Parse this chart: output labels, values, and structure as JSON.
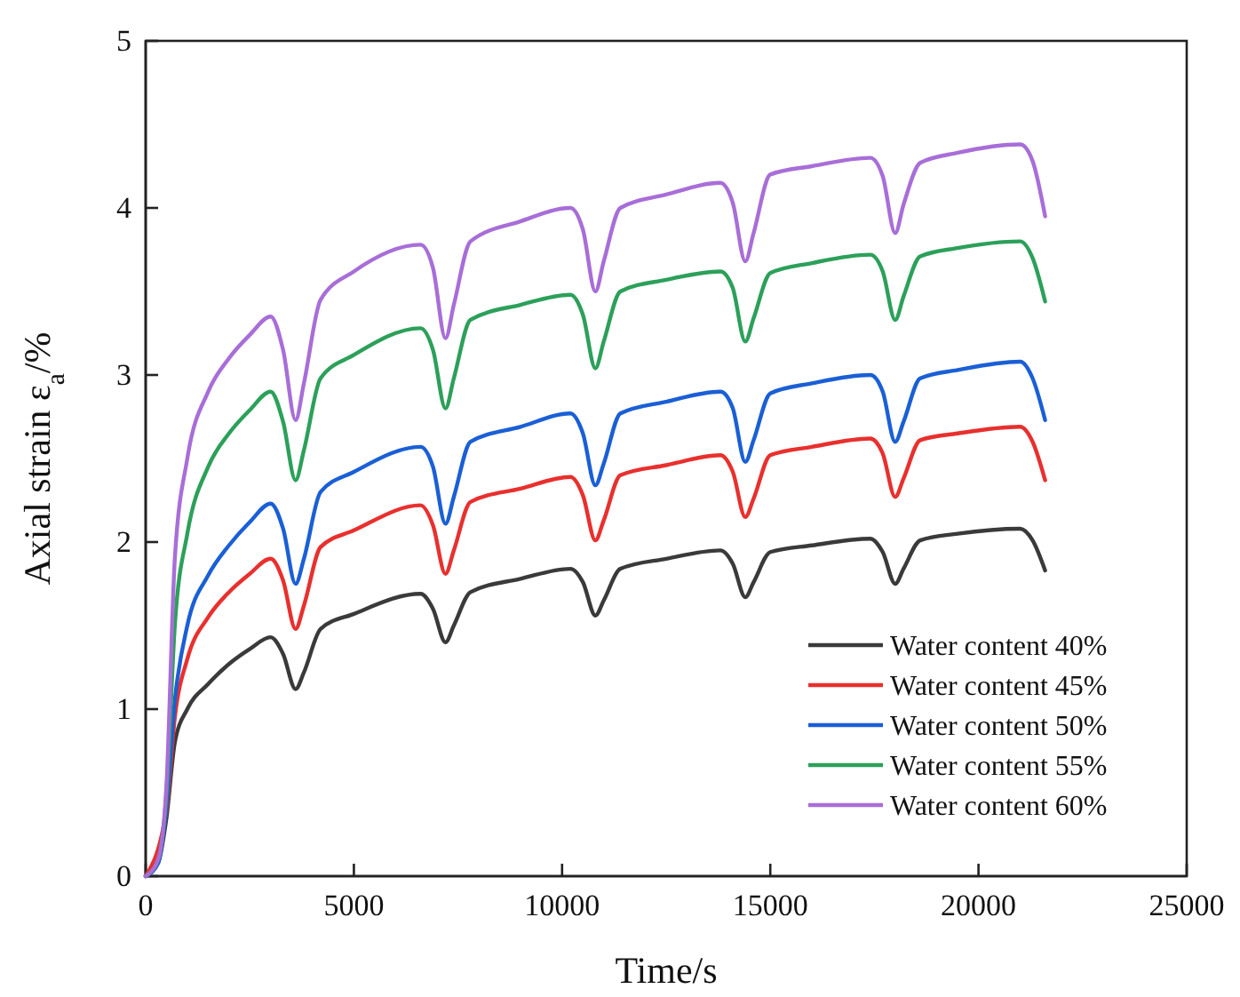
{
  "chart_data": {
    "type": "line",
    "xlabel": "Time/s",
    "ylabel": "Axial strain ε$_{a}$/%",
    "x": [
      0,
      300,
      500,
      700,
      1000,
      1500,
      2000,
      2500,
      3000,
      3300,
      3600,
      3800,
      4200,
      5000,
      6600,
      6900,
      7200,
      7400,
      7800,
      9000,
      10200,
      10500,
      10800,
      11000,
      11400,
      12500,
      13800,
      14100,
      14400,
      14600,
      15000,
      16000,
      17400,
      17700,
      18000,
      18200,
      18600,
      19500,
      21000,
      21300,
      21600
    ],
    "series": [
      {
        "name": "Water content 40%",
        "color": "#3a3a3a",
        "values": [
          0,
          0.08,
          0.35,
          0.8,
          1.0,
          1.15,
          1.27,
          1.36,
          1.43,
          1.33,
          1.12,
          1.22,
          1.48,
          1.57,
          1.69,
          1.6,
          1.4,
          1.5,
          1.7,
          1.78,
          1.84,
          1.76,
          1.56,
          1.65,
          1.84,
          1.9,
          1.95,
          1.87,
          1.67,
          1.76,
          1.94,
          1.98,
          2.02,
          1.94,
          1.75,
          1.84,
          2.01,
          2.05,
          2.08,
          2.01,
          1.83
        ]
      },
      {
        "name": "Water content 45%",
        "color": "#e8302e",
        "values": [
          0,
          null,
          0.4,
          0.95,
          1.3,
          1.55,
          1.7,
          1.81,
          1.9,
          1.77,
          1.48,
          1.62,
          1.97,
          2.07,
          2.22,
          2.1,
          1.81,
          1.95,
          2.24,
          2.32,
          2.39,
          2.28,
          2.01,
          2.13,
          2.4,
          2.46,
          2.52,
          2.42,
          2.15,
          2.26,
          2.52,
          2.57,
          2.62,
          2.53,
          2.27,
          2.38,
          2.61,
          2.65,
          2.69,
          2.6,
          2.37
        ]
      },
      {
        "name": "Water content 50%",
        "color": "#1a5fd6",
        "values": [
          0,
          0.08,
          0.42,
          1.05,
          1.5,
          1.8,
          1.98,
          2.12,
          2.23,
          2.08,
          1.75,
          1.9,
          2.3,
          2.42,
          2.57,
          2.45,
          2.11,
          2.27,
          2.6,
          2.69,
          2.77,
          2.65,
          2.34,
          2.47,
          2.77,
          2.84,
          2.9,
          2.8,
          2.48,
          2.61,
          2.89,
          2.95,
          3.0,
          2.9,
          2.6,
          2.72,
          2.98,
          3.03,
          3.08,
          2.98,
          2.73
        ]
      },
      {
        "name": "Water content 55%",
        "color": "#2ca05a",
        "values": [
          0,
          0.1,
          0.5,
          1.5,
          2.05,
          2.45,
          2.65,
          2.79,
          2.9,
          2.72,
          2.37,
          2.55,
          2.98,
          3.12,
          3.28,
          3.15,
          2.8,
          2.98,
          3.33,
          3.42,
          3.48,
          3.36,
          3.04,
          3.2,
          3.5,
          3.57,
          3.62,
          3.52,
          3.2,
          3.34,
          3.61,
          3.67,
          3.72,
          3.62,
          3.33,
          3.47,
          3.71,
          3.76,
          3.8,
          3.7,
          3.44
        ]
      },
      {
        "name": "Water content 60%",
        "color": "#a86ed8",
        "values": [
          0,
          0.1,
          0.55,
          1.9,
          2.5,
          2.9,
          3.1,
          3.24,
          3.35,
          3.15,
          2.73,
          2.95,
          3.45,
          3.62,
          3.78,
          3.64,
          3.22,
          3.42,
          3.8,
          3.92,
          4.0,
          3.87,
          3.5,
          3.68,
          4.0,
          4.08,
          4.15,
          4.03,
          3.68,
          3.85,
          4.2,
          4.25,
          4.3,
          4.19,
          3.85,
          4.02,
          4.27,
          4.33,
          4.38,
          4.28,
          3.95
        ]
      }
    ],
    "xlim": [
      0,
      25000
    ],
    "xticks": [
      0,
      5000,
      10000,
      15000,
      20000,
      25000
    ],
    "ylim": [
      0,
      5
    ],
    "yticks": [
      0,
      1,
      2,
      3,
      4,
      5
    ],
    "grid": false,
    "legend": "bottom right",
    "marker": "none",
    "line_style": "solid"
  }
}
